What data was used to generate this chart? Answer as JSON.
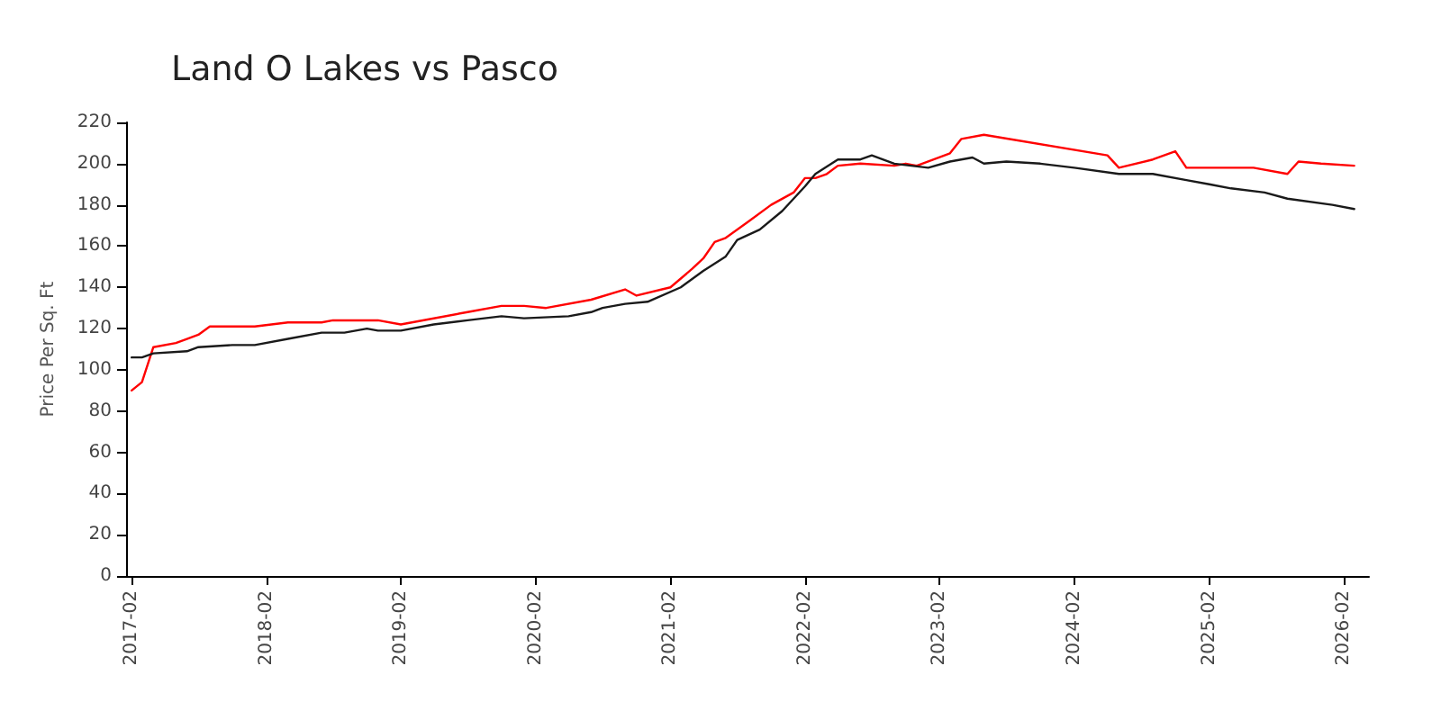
{
  "chart_data": {
    "type": "line",
    "title": "Land O Lakes vs Pasco",
    "ylabel": "Price Per Sq. Ft",
    "xlim": [
      "2017-01-17",
      "2026-04-10"
    ],
    "xticks": [
      "2017-02",
      "2018-02",
      "2019-02",
      "2020-02",
      "2021-02",
      "2022-02",
      "2023-02",
      "2024-02",
      "2025-02",
      "2026-02"
    ],
    "ylim": [
      0,
      220
    ],
    "yticks": [
      0,
      20,
      40,
      60,
      80,
      100,
      120,
      140,
      160,
      180,
      200,
      220
    ],
    "marker": "none",
    "line_style": "solid",
    "series": [
      {
        "color": "#ff0000",
        "x": [
          "2017-02",
          "2017-03",
          "2017-04",
          "2017-06",
          "2017-07",
          "2017-08",
          "2017-09",
          "2018-01",
          "2018-04",
          "2018-07",
          "2018-08",
          "2018-12",
          "2019-02",
          "2019-08",
          "2019-11",
          "2020-01",
          "2020-03",
          "2020-07",
          "2020-10",
          "2020-11",
          "2021-02",
          "2021-04",
          "2021-05",
          "2021-06",
          "2021-07",
          "2021-09",
          "2021-11",
          "2022-01",
          "2022-02",
          "2022-03",
          "2022-04",
          "2022-05",
          "2022-07",
          "2022-10",
          "2022-11",
          "2022-12",
          "2023-03",
          "2023-04",
          "2023-06",
          "2024-05",
          "2024-06",
          "2024-09",
          "2024-11",
          "2024-12",
          "2025-06",
          "2025-09",
          "2025-10",
          "2025-12",
          "2026-03"
        ],
        "values": [
          90,
          94,
          111,
          113,
          115,
          117,
          121,
          121,
          123,
          123,
          124,
          124,
          122,
          128,
          131,
          131,
          130,
          134,
          139,
          136,
          140,
          149,
          154,
          162,
          164,
          172,
          180,
          186,
          193,
          193,
          195,
          199,
          200,
          199,
          200,
          199,
          205,
          212,
          214,
          204,
          198,
          202,
          206,
          198,
          198,
          195,
          201,
          200,
          199
        ]
      },
      {
        "color": "#1a1a1a",
        "x": [
          "2017-02",
          "2017-03",
          "2017-04",
          "2017-07",
          "2017-08",
          "2017-11",
          "2018-01",
          "2018-04",
          "2018-07",
          "2018-09",
          "2018-11",
          "2018-12",
          "2019-02",
          "2019-05",
          "2019-08",
          "2019-11",
          "2020-01",
          "2020-05",
          "2020-07",
          "2020-08",
          "2020-10",
          "2020-12",
          "2021-03",
          "2021-05",
          "2021-07",
          "2021-08",
          "2021-10",
          "2021-12",
          "2022-02",
          "2022-03",
          "2022-05",
          "2022-07",
          "2022-08",
          "2022-10",
          "2023-01",
          "2023-03",
          "2023-05",
          "2023-06",
          "2023-08",
          "2023-11",
          "2024-02",
          "2024-06",
          "2024-09",
          "2024-12",
          "2025-02",
          "2025-04",
          "2025-07",
          "2025-09",
          "2026-01",
          "2026-03"
        ],
        "values": [
          106,
          106,
          108,
          109,
          111,
          112,
          112,
          115,
          118,
          118,
          120,
          119,
          119,
          122,
          124,
          126,
          125,
          126,
          128,
          130,
          132,
          133,
          140,
          148,
          155,
          163,
          168,
          177,
          189,
          195,
          202,
          202,
          204,
          200,
          198,
          201,
          203,
          200,
          201,
          200,
          198,
          195,
          195,
          192,
          190,
          188,
          186,
          183,
          180,
          178
        ]
      }
    ]
  }
}
